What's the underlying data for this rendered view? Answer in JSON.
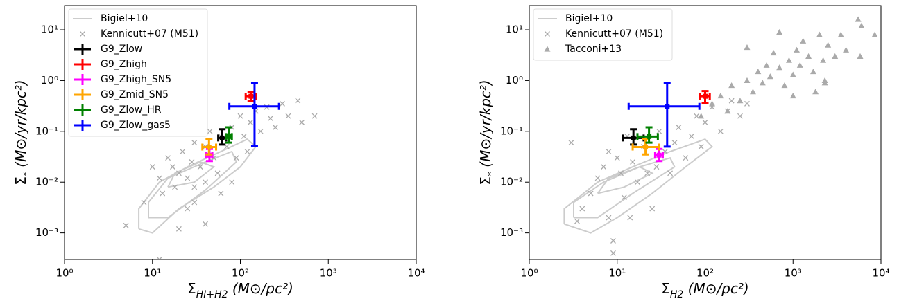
{
  "chart_data": [
    {
      "type": "scatter",
      "xscale": "log",
      "yscale": "log",
      "legend": "upper left",
      "xlim": [
        1,
        10000
      ],
      "ylim": [
        0.0003,
        30
      ],
      "xticks": [
        {
          "value": 1,
          "label": "10⁰"
        },
        {
          "value": 10,
          "label": "10¹"
        },
        {
          "value": 100,
          "label": "10²"
        },
        {
          "value": 1000,
          "label": "10³"
        },
        {
          "value": 10000,
          "label": "10⁴"
        }
      ],
      "yticks": [
        {
          "value": 0.001,
          "label": "10⁻³"
        },
        {
          "value": 0.01,
          "label": "10⁻²"
        },
        {
          "value": 0.1,
          "label": "10⁻¹"
        },
        {
          "value": 1,
          "label": "10⁰"
        },
        {
          "value": 10,
          "label": "10¹"
        }
      ],
      "xlabel": [
        "Σ",
        "HI+H2",
        " (M⊙/pc²)"
      ],
      "ylabel": [
        "Σ",
        "*",
        " (M⊙/yr/kpc²)"
      ],
      "series": [
        {
          "name": "Bigiel+10",
          "color": "#cccccc",
          "marker": "line",
          "x": [
            7,
            10,
            20,
            50,
            100,
            150,
            120,
            60,
            25,
            12,
            7,
            7,
            null,
            9,
            15,
            40,
            90,
            80,
            40,
            15,
            9,
            9,
            null,
            15,
            30,
            50,
            35,
            18,
            15
          ],
          "y": [
            0.0012,
            0.001,
            0.003,
            0.008,
            0.02,
            0.05,
            0.07,
            0.04,
            0.02,
            0.01,
            0.003,
            0.0012,
            null,
            0.002,
            0.002,
            0.007,
            0.025,
            0.04,
            0.025,
            0.012,
            0.004,
            0.002,
            null,
            0.008,
            0.01,
            0.02,
            0.025,
            0.015,
            0.008
          ]
        },
        {
          "name": "Kennicutt+07 (M51)",
          "color": "#aaaaaa",
          "marker": "x",
          "x": [
            5,
            8,
            10,
            12,
            13,
            15,
            17,
            18,
            20,
            22,
            25,
            25,
            28,
            30,
            30,
            35,
            40,
            40,
            45,
            50,
            55,
            60,
            70,
            80,
            90,
            100,
            110,
            130,
            150,
            170,
            200,
            220,
            250,
            300,
            350,
            450,
            500,
            700,
            12,
            20,
            40,
            30,
            60,
            80,
            120
          ],
          "y": [
            0.0014,
            0.004,
            0.02,
            0.012,
            0.006,
            0.03,
            0.02,
            0.008,
            0.015,
            0.04,
            0.012,
            0.003,
            0.025,
            0.06,
            0.008,
            0.02,
            0.05,
            0.01,
            0.1,
            0.03,
            0.015,
            0.08,
            0.05,
            0.12,
            0.03,
            0.2,
            0.08,
            0.15,
            0.25,
            0.1,
            0.3,
            0.18,
            0.12,
            0.35,
            0.2,
            0.4,
            0.15,
            0.2,
            0.0003,
            0.0012,
            0.0015,
            0.004,
            0.006,
            0.01,
            0.04
          ]
        },
        {
          "name": "G9_Zlow",
          "color": "#000000",
          "marker": "errorbar",
          "x": [
            62
          ],
          "y": [
            0.074
          ],
          "xerr": [
            [
              56,
              69
            ]
          ],
          "yerr": [
            [
              0.055,
              0.11
            ]
          ]
        },
        {
          "name": "G9_Zhigh",
          "color": "#ff0000",
          "marker": "errorbar",
          "x": [
            132
          ],
          "y": [
            0.49
          ],
          "xerr": [
            [
              115,
              150
            ]
          ],
          "yerr": [
            [
              0.4,
              0.6
            ]
          ]
        },
        {
          "name": "G9_Zhigh_SN5",
          "color": "#ff00ff",
          "marker": "errorbar",
          "x": [
            44.5
          ],
          "y": [
            0.034
          ],
          "xerr": [
            [
              41,
              48
            ]
          ],
          "yerr": [
            [
              0.026,
              0.045
            ]
          ]
        },
        {
          "name": "G9_Zmid_SN5",
          "color": "#ffa500",
          "marker": "errorbar",
          "x": [
            44
          ],
          "y": [
            0.049
          ],
          "xerr": [
            [
              37,
              53
            ]
          ],
          "yerr": [
            [
              0.035,
              0.07
            ]
          ]
        },
        {
          "name": "G9_Zlow_HR",
          "color": "#008000",
          "marker": "errorbar",
          "x": [
            74
          ],
          "y": [
            0.079
          ],
          "xerr": [
            [
              69,
              80
            ]
          ],
          "yerr": [
            [
              0.06,
              0.12
            ]
          ]
        },
        {
          "name": "G9_Zlow_gas5",
          "color": "#0000ff",
          "marker": "errorbar",
          "x": [
            145
          ],
          "y": [
            0.31
          ],
          "xerr": [
            [
              75,
              275
            ]
          ],
          "yerr": [
            [
              0.052,
              0.9
            ]
          ]
        }
      ]
    },
    {
      "type": "scatter",
      "xscale": "log",
      "yscale": "log",
      "legend": "upper left",
      "xlim": [
        1,
        10000
      ],
      "ylim": [
        0.0003,
        30
      ],
      "xticks": [
        {
          "value": 1,
          "label": "10⁰"
        },
        {
          "value": 10,
          "label": "10¹"
        },
        {
          "value": 100,
          "label": "10²"
        },
        {
          "value": 1000,
          "label": "10³"
        },
        {
          "value": 10000,
          "label": "10⁴"
        }
      ],
      "yticks": [
        {
          "value": 0.001,
          "label": "10⁻³"
        },
        {
          "value": 0.01,
          "label": "10⁻²"
        },
        {
          "value": 0.1,
          "label": "10⁻¹"
        },
        {
          "value": 1,
          "label": "10⁰"
        },
        {
          "value": 10,
          "label": "10¹"
        }
      ],
      "xlabel": [
        "Σ",
        "H2",
        " (M⊙/pc²)"
      ],
      "ylabel": [
        "Σ",
        "*",
        " (M⊙/yr/kpc²)"
      ],
      "series": [
        {
          "name": "Bigiel+10",
          "color": "#cccccc",
          "marker": "line",
          "x": [
            2.5,
            5,
            10,
            25,
            60,
            120,
            100,
            40,
            15,
            6,
            2.5,
            2.5,
            null,
            3.2,
            6,
            15,
            45,
            40,
            18,
            7,
            3.2,
            3.2,
            null,
            6,
            12,
            25,
            18,
            8,
            6
          ],
          "y": [
            0.0015,
            0.001,
            0.002,
            0.006,
            0.02,
            0.05,
            0.07,
            0.04,
            0.02,
            0.01,
            0.003,
            0.0015,
            null,
            0.002,
            0.002,
            0.006,
            0.02,
            0.03,
            0.02,
            0.01,
            0.004,
            0.002,
            null,
            0.006,
            0.008,
            0.015,
            0.02,
            0.012,
            0.006
          ]
        },
        {
          "name": "Kennicutt+07 (M51)",
          "color": "#aaaaaa",
          "marker": "x",
          "x": [
            3,
            4,
            5,
            6,
            7,
            8,
            8,
            9,
            10,
            11,
            12,
            13,
            15,
            17,
            20,
            22,
            25,
            28,
            30,
            35,
            40,
            45,
            50,
            60,
            70,
            80,
            90,
            100,
            120,
            150,
            180,
            200,
            250,
            300,
            9,
            3.5,
            14
          ],
          "y": [
            0.06,
            0.003,
            0.006,
            0.012,
            0.02,
            0.002,
            0.04,
            0.0007,
            0.03,
            0.015,
            0.005,
            0.08,
            0.025,
            0.01,
            0.05,
            0.015,
            0.003,
            0.02,
            0.1,
            0.04,
            0.015,
            0.06,
            0.12,
            0.03,
            0.08,
            0.2,
            0.05,
            0.15,
            0.3,
            0.1,
            0.25,
            0.4,
            0.2,
            0.35,
            0.0004,
            0.0017,
            0.002
          ]
        },
        {
          "name": "Tacconi+13",
          "color": "#aaaaaa",
          "marker": "triangle",
          "x": [
            90,
            120,
            150,
            180,
            200,
            250,
            300,
            300,
            350,
            400,
            450,
            500,
            550,
            600,
            700,
            800,
            900,
            1000,
            1100,
            1200,
            1300,
            1500,
            1700,
            2000,
            2200,
            2500,
            2300,
            3000,
            3500,
            4000,
            5500,
            5800,
            6000,
            8500,
            700,
            1800,
            2300,
            1000
          ],
          "y": [
            0.2,
            0.35,
            0.5,
            0.25,
            0.8,
            0.4,
            4.5,
            1.0,
            0.6,
            1.5,
            0.9,
            2.0,
            1.2,
            3.5,
            1.8,
            0.8,
            2.5,
            1.3,
            4,
            2,
            6,
            3,
            1.5,
            8,
            2.5,
            5,
            1.0,
            3,
            8,
            4,
            16,
            3,
            12,
            8,
            9,
            0.6,
            0.9,
            0.5
          ]
        },
        {
          "color": "#000000",
          "marker": "errorbar",
          "x": [
            15.3
          ],
          "y": [
            0.074
          ],
          "xerr": [
            [
              11.6,
              20
            ]
          ],
          "yerr": [
            [
              0.055,
              0.11
            ]
          ]
        },
        {
          "color": "#ff0000",
          "marker": "errorbar",
          "x": [
            100
          ],
          "y": [
            0.49
          ],
          "xerr": [
            [
              88,
              113
            ]
          ],
          "yerr": [
            [
              0.36,
              0.62
            ]
          ]
        },
        {
          "color": "#ff00ff",
          "marker": "errorbar",
          "x": [
            30
          ],
          "y": [
            0.034
          ],
          "xerr": [
            [
              27,
              33
            ]
          ],
          "yerr": [
            [
              0.026,
              0.045
            ]
          ]
        },
        {
          "color": "#ffa500",
          "marker": "errorbar",
          "x": [
            21
          ],
          "y": [
            0.049
          ],
          "xerr": [
            [
              15,
              30
            ]
          ],
          "yerr": [
            [
              0.035,
              0.07
            ]
          ]
        },
        {
          "color": "#008000",
          "marker": "errorbar",
          "x": [
            23
          ],
          "y": [
            0.079
          ],
          "xerr": [
            [
              17,
              29
            ]
          ],
          "yerr": [
            [
              0.06,
              0.12
            ]
          ]
        },
        {
          "color": "#0000ff",
          "marker": "errorbar",
          "x": [
            37
          ],
          "y": [
            0.31
          ],
          "xerr": [
            [
              13.5,
              86
            ]
          ],
          "yerr": [
            [
              0.05,
              0.9
            ]
          ]
        }
      ]
    }
  ]
}
